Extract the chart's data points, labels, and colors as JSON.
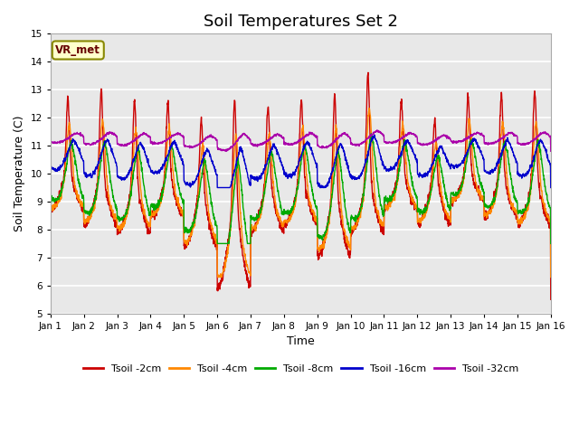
{
  "title": "Soil Temperatures Set 2",
  "xlabel": "Time",
  "ylabel": "Soil Temperature (C)",
  "ylim": [
    5.0,
    15.0
  ],
  "yticks": [
    5.0,
    6.0,
    7.0,
    8.0,
    9.0,
    10.0,
    11.0,
    12.0,
    13.0,
    14.0,
    15.0
  ],
  "xlim": [
    0,
    15
  ],
  "xtick_labels": [
    "Jan 1",
    "Jan 2",
    "Jan 3",
    "Jan 4",
    "Jan 5",
    "Jan 6",
    "Jan 7",
    "Jan 8",
    "Jan 9",
    "Jan 10",
    "Jan 11",
    "Jan 12",
    "Jan 13",
    "Jan 14",
    "Jan 15",
    "Jan 16"
  ],
  "series_colors": [
    "#cc0000",
    "#ff8800",
    "#00aa00",
    "#0000cc",
    "#aa00aa"
  ],
  "series_labels": [
    "Tsoil -2cm",
    "Tsoil -4cm",
    "Tsoil -8cm",
    "Tsoil -16cm",
    "Tsoil -32cm"
  ],
  "annotation_text": "VR_met",
  "bg_color": "#e8e8e8",
  "grid_color": "white",
  "title_fontsize": 13
}
